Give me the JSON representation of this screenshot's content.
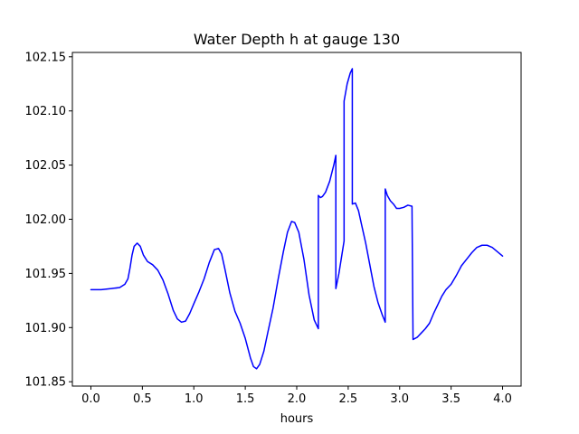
{
  "chart_data": {
    "type": "line",
    "title": "Water Depth h at gauge 130",
    "xlabel": "hours",
    "ylabel": "",
    "xlim": [
      -0.18,
      4.18
    ],
    "ylim": [
      101.846,
      102.154
    ],
    "grid": false,
    "legend": "none",
    "x_ticks": [
      {
        "value": 0.0,
        "label": "0.0"
      },
      {
        "value": 0.5,
        "label": "0.5"
      },
      {
        "value": 1.0,
        "label": "1.0"
      },
      {
        "value": 1.5,
        "label": "1.5"
      },
      {
        "value": 2.0,
        "label": "2.0"
      },
      {
        "value": 2.5,
        "label": "2.5"
      },
      {
        "value": 3.0,
        "label": "3.0"
      },
      {
        "value": 3.5,
        "label": "3.5"
      },
      {
        "value": 4.0,
        "label": "4.0"
      }
    ],
    "y_ticks": [
      {
        "value": 101.85,
        "label": "101.85"
      },
      {
        "value": 101.9,
        "label": "101.90"
      },
      {
        "value": 101.95,
        "label": "101.95"
      },
      {
        "value": 102.0,
        "label": "102.00"
      },
      {
        "value": 102.05,
        "label": "102.05"
      },
      {
        "value": 102.1,
        "label": "102.10"
      },
      {
        "value": 102.15,
        "label": "102.15"
      }
    ],
    "series": [
      {
        "color": "#0000ff",
        "points": [
          [
            0.0,
            101.935
          ],
          [
            0.1,
            101.935
          ],
          [
            0.2,
            101.936
          ],
          [
            0.28,
            101.937
          ],
          [
            0.33,
            101.94
          ],
          [
            0.36,
            101.945
          ],
          [
            0.38,
            101.955
          ],
          [
            0.4,
            101.967
          ],
          [
            0.42,
            101.975
          ],
          [
            0.45,
            101.978
          ],
          [
            0.48,
            101.975
          ],
          [
            0.51,
            101.967
          ],
          [
            0.55,
            101.961
          ],
          [
            0.6,
            101.958
          ],
          [
            0.65,
            101.953
          ],
          [
            0.7,
            101.944
          ],
          [
            0.75,
            101.931
          ],
          [
            0.8,
            101.916
          ],
          [
            0.84,
            101.908
          ],
          [
            0.88,
            101.905
          ],
          [
            0.92,
            101.906
          ],
          [
            0.96,
            101.913
          ],
          [
            1.0,
            101.922
          ],
          [
            1.05,
            101.933
          ],
          [
            1.1,
            101.945
          ],
          [
            1.15,
            101.96
          ],
          [
            1.2,
            101.972
          ],
          [
            1.24,
            101.973
          ],
          [
            1.27,
            101.968
          ],
          [
            1.3,
            101.955
          ],
          [
            1.35,
            101.932
          ],
          [
            1.4,
            101.915
          ],
          [
            1.45,
            101.904
          ],
          [
            1.5,
            101.89
          ],
          [
            1.55,
            101.872
          ],
          [
            1.58,
            101.864
          ],
          [
            1.61,
            101.862
          ],
          [
            1.64,
            101.866
          ],
          [
            1.68,
            101.878
          ],
          [
            1.72,
            101.896
          ],
          [
            1.77,
            101.918
          ],
          [
            1.82,
            101.945
          ],
          [
            1.87,
            101.97
          ],
          [
            1.91,
            101.988
          ],
          [
            1.95,
            101.998
          ],
          [
            1.98,
            101.997
          ],
          [
            2.02,
            101.988
          ],
          [
            2.07,
            101.963
          ],
          [
            2.12,
            101.93
          ],
          [
            2.17,
            101.907
          ],
          [
            2.21,
            101.899
          ],
          [
            2.21,
            102.022
          ],
          [
            2.23,
            102.02
          ],
          [
            2.25,
            102.021
          ],
          [
            2.28,
            102.025
          ],
          [
            2.32,
            102.035
          ],
          [
            2.36,
            102.05
          ],
          [
            2.38,
            102.059
          ],
          [
            2.38,
            101.936
          ],
          [
            2.41,
            101.95
          ],
          [
            2.44,
            101.968
          ],
          [
            2.46,
            101.98
          ],
          [
            2.46,
            102.109
          ],
          [
            2.49,
            102.125
          ],
          [
            2.52,
            102.135
          ],
          [
            2.54,
            102.139
          ],
          [
            2.54,
            102.014
          ],
          [
            2.57,
            102.015
          ],
          [
            2.6,
            102.008
          ],
          [
            2.63,
            101.995
          ],
          [
            2.67,
            101.978
          ],
          [
            2.71,
            101.958
          ],
          [
            2.75,
            101.938
          ],
          [
            2.79,
            101.923
          ],
          [
            2.83,
            101.912
          ],
          [
            2.86,
            101.905
          ],
          [
            2.86,
            102.028
          ],
          [
            2.88,
            102.022
          ],
          [
            2.91,
            102.017
          ],
          [
            2.94,
            102.014
          ],
          [
            2.97,
            102.01
          ],
          [
            3.0,
            102.01
          ],
          [
            3.04,
            102.011
          ],
          [
            3.08,
            102.013
          ],
          [
            3.12,
            102.012
          ],
          [
            3.13,
            101.889
          ],
          [
            3.17,
            101.891
          ],
          [
            3.21,
            101.895
          ],
          [
            3.25,
            101.899
          ],
          [
            3.29,
            101.904
          ],
          [
            3.33,
            101.913
          ],
          [
            3.37,
            101.921
          ],
          [
            3.41,
            101.929
          ],
          [
            3.45,
            101.935
          ],
          [
            3.5,
            101.94
          ],
          [
            3.55,
            101.948
          ],
          [
            3.6,
            101.957
          ],
          [
            3.65,
            101.963
          ],
          [
            3.7,
            101.969
          ],
          [
            3.75,
            101.974
          ],
          [
            3.8,
            101.976
          ],
          [
            3.85,
            101.976
          ],
          [
            3.9,
            101.974
          ],
          [
            3.95,
            101.97
          ],
          [
            4.0,
            101.966
          ]
        ]
      }
    ]
  }
}
